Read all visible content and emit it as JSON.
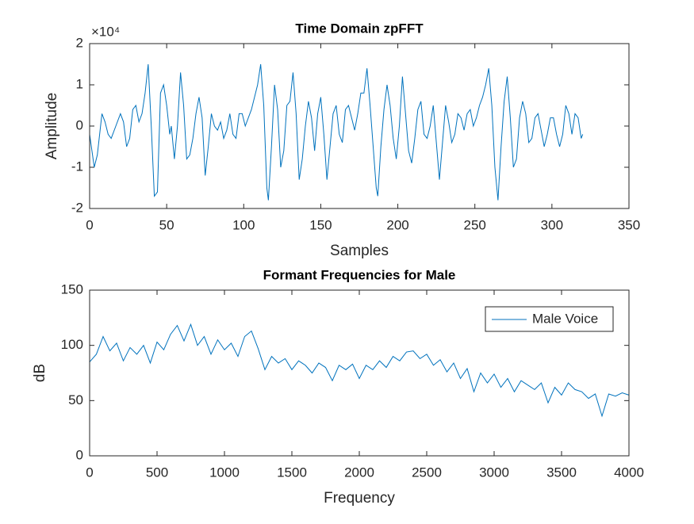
{
  "chart_data": [
    {
      "type": "line",
      "title": "Time Domain zpFFT",
      "x_label": "Samples",
      "y_label": "Amplitude",
      "y_exponent_label": "×10⁴",
      "xlim": [
        0,
        350
      ],
      "xticks": [
        0,
        50,
        100,
        150,
        200,
        250,
        300,
        350
      ],
      "ylim": [
        -2,
        2
      ],
      "yticks": [
        -2,
        -1,
        0,
        1,
        2
      ],
      "series": [
        {
          "color": "#0072bd",
          "x": [
            0,
            3,
            5,
            8,
            10,
            12,
            14,
            17,
            20,
            22,
            24,
            26,
            28,
            30,
            32,
            34,
            36,
            38,
            40,
            42,
            44,
            46,
            48,
            50,
            52,
            53,
            55,
            57,
            59,
            61,
            63,
            65,
            67,
            69,
            71,
            73,
            75,
            77,
            79,
            81,
            83,
            85,
            87,
            89,
            91,
            93,
            95,
            97,
            99,
            101,
            103,
            105,
            107,
            109,
            111,
            113,
            115,
            116,
            118,
            120,
            122,
            124,
            126,
            128,
            130,
            132,
            134,
            136,
            138,
            140,
            142,
            144,
            146,
            148,
            150,
            152,
            154,
            156,
            158,
            160,
            162,
            164,
            166,
            168,
            170,
            172,
            174,
            176,
            178,
            180,
            182,
            184,
            186,
            187,
            189,
            191,
            193,
            195,
            197,
            199,
            201,
            203,
            205,
            207,
            209,
            211,
            213,
            215,
            217,
            219,
            221,
            223,
            225,
            227,
            229,
            231,
            233,
            235,
            237,
            239,
            241,
            243,
            245,
            247,
            249,
            251,
            253,
            255,
            257,
            259,
            261,
            263,
            265,
            267,
            269,
            271,
            273,
            275,
            277,
            279,
            281,
            283,
            285,
            287,
            289,
            291,
            293,
            295,
            297,
            299,
            301,
            303,
            305,
            307,
            309,
            311,
            313,
            315,
            317,
            319,
            320
          ],
          "values": [
            -0.2,
            -1.0,
            -0.7,
            0.3,
            0.1,
            -0.2,
            -0.3,
            0,
            0.3,
            0.1,
            -0.5,
            -0.3,
            0.4,
            0.5,
            0.1,
            0.3,
            0.8,
            1.5,
            0,
            -1.7,
            -1.6,
            0.8,
            1.0,
            0.5,
            -0.2,
            0,
            -0.8,
            0,
            1.3,
            0.5,
            -0.8,
            -0.7,
            -0.3,
            0.3,
            0.7,
            0.2,
            -1.2,
            -0.5,
            0.3,
            0,
            -0.1,
            0.1,
            -0.3,
            -0.1,
            0.3,
            -0.2,
            -0.3,
            0.3,
            0.3,
            0,
            0.2,
            0.4,
            0.7,
            1.0,
            1.5,
            0.5,
            -1.5,
            -1.8,
            -0.5,
            1.0,
            0.4,
            -1.0,
            -0.6,
            0.5,
            0.6,
            1.3,
            0.3,
            -1.3,
            -0.8,
            0,
            0.6,
            0.2,
            -0.6,
            0.3,
            0.7,
            -0.2,
            -1.3,
            -0.5,
            0.3,
            0.5,
            -0.2,
            -0.4,
            0.4,
            0.5,
            0.2,
            -0.1,
            0.3,
            0.8,
            0.8,
            1.4,
            0.5,
            -0.5,
            -1.5,
            -1.7,
            -0.5,
            0.4,
            1.0,
            0.5,
            -0.3,
            -0.8,
            0,
            1.2,
            0.3,
            -0.6,
            -0.9,
            -0.3,
            0.4,
            0.6,
            -0.2,
            -0.3,
            0,
            0.5,
            -0.4,
            -1.3,
            -0.4,
            0.5,
            0.1,
            -0.4,
            -0.2,
            0.3,
            0.2,
            -0.1,
            0.3,
            0.4,
            0,
            0.2,
            0.5,
            0.7,
            1.0,
            1.4,
            0.5,
            -1.0,
            -1.8,
            -0.5,
            0.6,
            1.2,
            0.2,
            -1.0,
            -0.8,
            0.2,
            0.6,
            0.3,
            -0.4,
            -0.3,
            0.2,
            0.3,
            -0.1,
            -0.5,
            -0.2,
            0.2,
            0.2,
            -0.2,
            -0.5,
            -0.2,
            0.5,
            0.3,
            -0.2,
            0.3,
            0.2,
            -0.3,
            -0.2
          ]
        }
      ]
    },
    {
      "type": "line",
      "title": "Formant Frequencies for Male",
      "x_label": "Frequency",
      "y_label": "dB",
      "xlim": [
        0,
        4000
      ],
      "xticks": [
        0,
        500,
        1000,
        1500,
        2000,
        2500,
        3000,
        3500,
        4000
      ],
      "ylim": [
        0,
        150
      ],
      "yticks": [
        0,
        50,
        100,
        150
      ],
      "legend": "northeast",
      "series": [
        {
          "name": "Male Voice",
          "color": "#0072bd",
          "x": [
            0,
            50,
            100,
            150,
            200,
            250,
            300,
            350,
            400,
            450,
            500,
            550,
            600,
            650,
            700,
            750,
            800,
            850,
            900,
            950,
            1000,
            1050,
            1100,
            1150,
            1200,
            1250,
            1300,
            1350,
            1400,
            1450,
            1500,
            1550,
            1600,
            1650,
            1700,
            1750,
            1800,
            1850,
            1900,
            1950,
            2000,
            2050,
            2100,
            2150,
            2200,
            2250,
            2300,
            2350,
            2400,
            2450,
            2500,
            2550,
            2600,
            2650,
            2700,
            2750,
            2800,
            2850,
            2900,
            2950,
            3000,
            3050,
            3100,
            3150,
            3200,
            3250,
            3300,
            3350,
            3400,
            3450,
            3500,
            3550,
            3600,
            3650,
            3700,
            3750,
            3800,
            3850,
            3900,
            3950,
            4000
          ],
          "values": [
            85,
            92,
            108,
            95,
            102,
            86,
            98,
            92,
            100,
            84,
            103,
            96,
            110,
            118,
            104,
            119,
            100,
            108,
            92,
            105,
            96,
            102,
            90,
            108,
            113,
            97,
            78,
            90,
            84,
            88,
            78,
            86,
            82,
            75,
            84,
            80,
            68,
            82,
            78,
            83,
            70,
            82,
            78,
            86,
            80,
            90,
            86,
            94,
            95,
            88,
            92,
            82,
            87,
            76,
            84,
            70,
            79,
            58,
            75,
            66,
            74,
            62,
            70,
            58,
            68,
            64,
            60,
            66,
            48,
            62,
            55,
            66,
            60,
            58,
            52,
            56,
            36,
            56,
            54,
            57,
            55
          ]
        }
      ]
    }
  ]
}
